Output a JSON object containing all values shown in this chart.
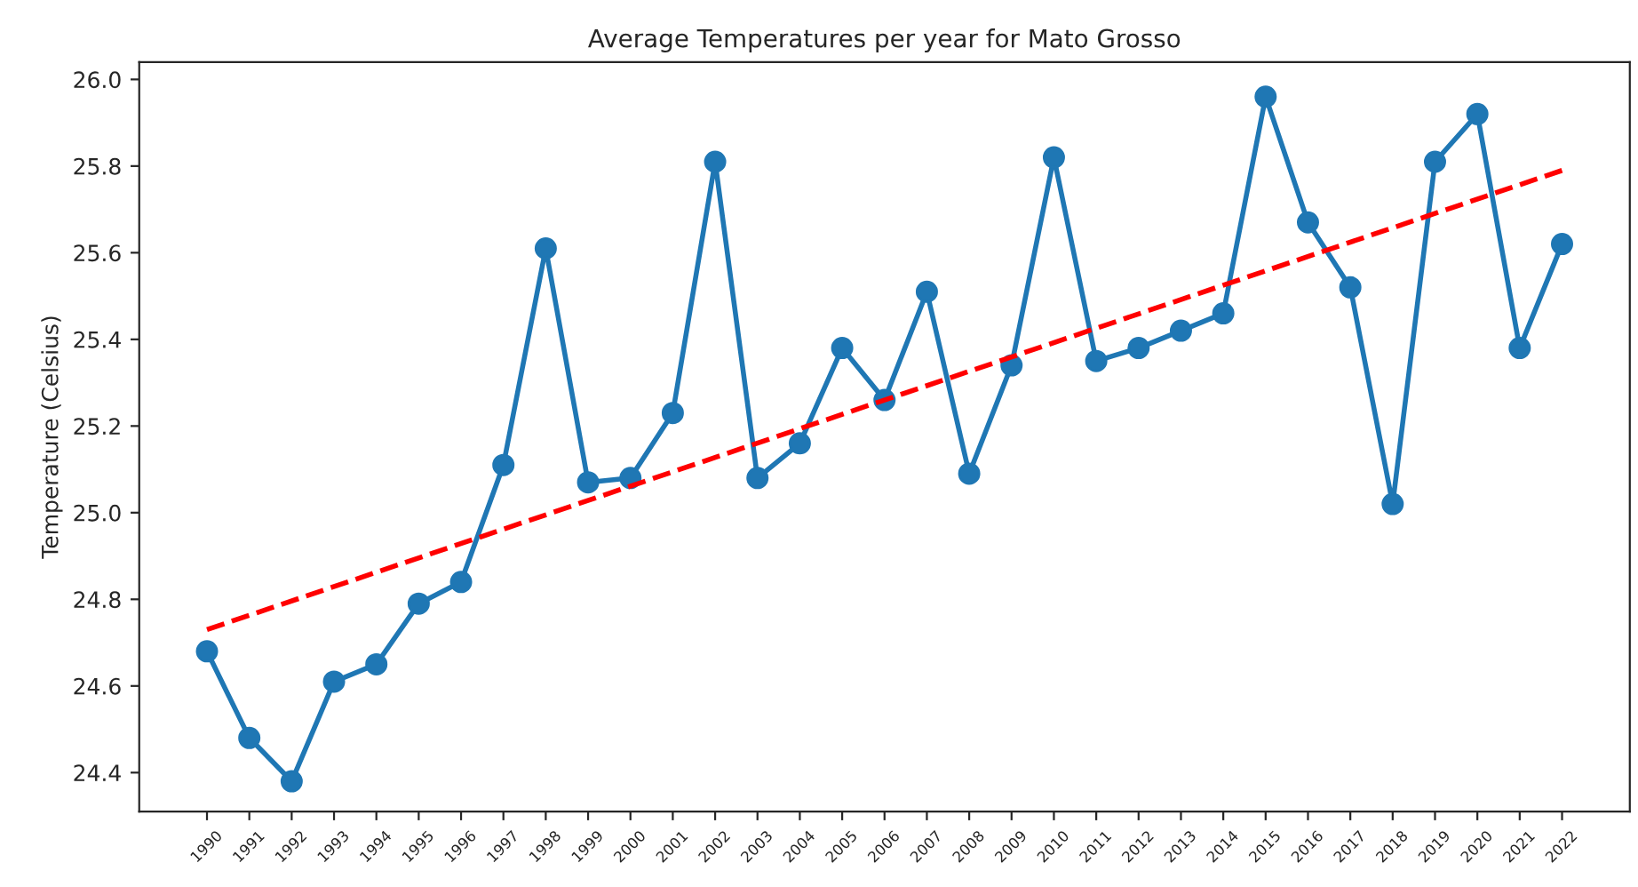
{
  "chart_data": {
    "type": "line",
    "title": "Average Temperatures per year for Mato Grosso",
    "ylabel": "Temperature (Celsius)",
    "x": [
      1990,
      1991,
      1992,
      1993,
      1994,
      1995,
      1996,
      1997,
      1998,
      1999,
      2000,
      2001,
      2002,
      2003,
      2004,
      2005,
      2006,
      2007,
      2008,
      2009,
      2010,
      2011,
      2012,
      2013,
      2014,
      2015,
      2016,
      2017,
      2018,
      2019,
      2020,
      2021,
      2022
    ],
    "series": [
      {
        "color": "#1f77b4",
        "marker": "circle",
        "line_style": "solid",
        "values": [
          24.68,
          24.48,
          24.38,
          24.61,
          24.65,
          24.79,
          24.84,
          25.11,
          25.61,
          25.07,
          25.08,
          25.23,
          25.81,
          25.08,
          25.16,
          25.38,
          25.26,
          25.51,
          25.09,
          25.34,
          25.82,
          25.35,
          25.38,
          25.42,
          25.46,
          25.96,
          25.67,
          25.52,
          25.02,
          25.81,
          25.92,
          25.38,
          25.62
        ]
      },
      {
        "color": "#ff0000",
        "marker": "none",
        "line_style": "dashed",
        "x": [
          1990,
          2022
        ],
        "values": [
          24.73,
          25.79
        ]
      }
    ],
    "xlim": [
      1988.4,
      2023.6
    ],
    "ylim": [
      24.31,
      26.04
    ],
    "xticks": [
      1990,
      1991,
      1992,
      1993,
      1994,
      1995,
      1996,
      1997,
      1998,
      1999,
      2000,
      2001,
      2002,
      2003,
      2004,
      2005,
      2006,
      2007,
      2008,
      2009,
      2010,
      2011,
      2012,
      2013,
      2014,
      2015,
      2016,
      2017,
      2018,
      2019,
      2020,
      2021,
      2022
    ],
    "yticks": [
      {
        "value": 24.4,
        "label": "24.4"
      },
      {
        "value": 24.6,
        "label": "24.6"
      },
      {
        "value": 24.8,
        "label": "24.8"
      },
      {
        "value": 25.0,
        "label": "25.0"
      },
      {
        "value": 25.2,
        "label": "25.2"
      },
      {
        "value": 25.4,
        "label": "25.4"
      },
      {
        "value": 25.6,
        "label": "25.6"
      },
      {
        "value": 25.8,
        "label": "25.8"
      },
      {
        "value": 26.0,
        "label": "26.0"
      }
    ],
    "grid": false,
    "legend": false
  }
}
